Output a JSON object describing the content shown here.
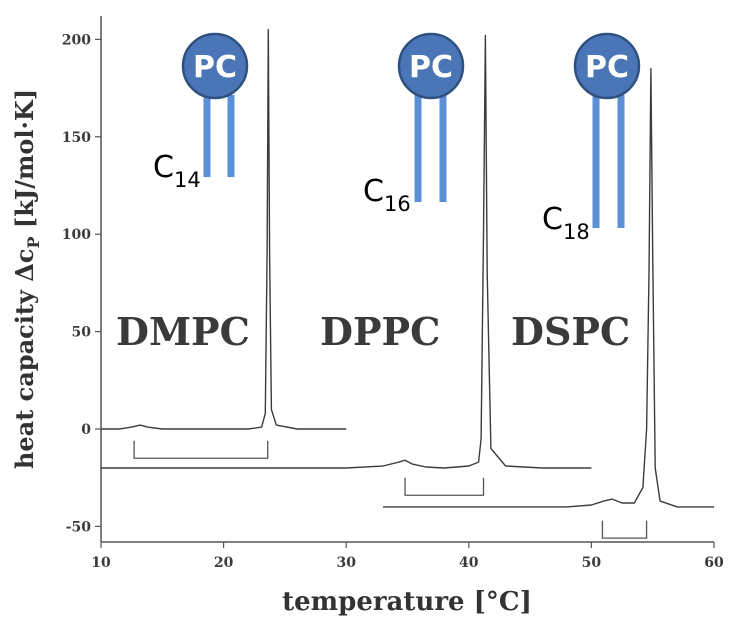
{
  "chart_data": {
    "type": "line",
    "xlabel": "temperature [°C]",
    "ylabel_main": "heat capacity Δc",
    "ylabel_sub": "P",
    "ylabel_unit": " [kJ/mol·K]",
    "xlim": [
      10,
      60
    ],
    "ylim": [
      -58,
      212
    ],
    "xticks": [
      10,
      20,
      30,
      40,
      50,
      60
    ],
    "yticks": [
      -50,
      0,
      50,
      100,
      150,
      200
    ],
    "grid": false,
    "series": [
      {
        "name": "DMPC",
        "chain": "14",
        "x": [
          10,
          11.5,
          12.5,
          13.2,
          13.8,
          15,
          17,
          20,
          22,
          23.1,
          23.4,
          23.55,
          23.65,
          23.75,
          23.9,
          24.3,
          26,
          30
        ],
        "y": [
          0,
          0,
          1,
          2,
          1,
          0,
          0,
          0,
          0,
          1,
          8,
          90,
          205,
          90,
          10,
          2,
          0,
          0
        ]
      },
      {
        "name": "DPPC",
        "chain": "16",
        "x": [
          10,
          20,
          30,
          33,
          34.3,
          34.8,
          35.4,
          36.5,
          38,
          40,
          40.8,
          41.0,
          41.2,
          41.35,
          41.5,
          41.8,
          43,
          46,
          50
        ],
        "y": [
          -20,
          -20,
          -20,
          -19,
          -17,
          -16,
          -18,
          -19.5,
          -20,
          -19,
          -17,
          -5,
          100,
          202,
          80,
          -10,
          -19,
          -20,
          -20
        ]
      },
      {
        "name": "DSPC",
        "chain": "18",
        "x": [
          33,
          40,
          48,
          50,
          51,
          51.7,
          52.5,
          53.5,
          54.2,
          54.5,
          54.7,
          54.85,
          55.0,
          55.2,
          55.6,
          57,
          60
        ],
        "y": [
          -40,
          -40,
          -40,
          -39,
          -37,
          -36,
          -38,
          -38,
          -30,
          0,
          80,
          185,
          90,
          -20,
          -37,
          -40,
          -40
        ]
      }
    ],
    "brackets": [
      {
        "x1": 12.7,
        "x2": 23.6,
        "y": -15,
        "drop": 9
      },
      {
        "x1": 34.8,
        "x2": 41.2,
        "y": -34,
        "drop": 9
      },
      {
        "x1": 50.9,
        "x2": 54.5,
        "y": -56,
        "drop": 9
      }
    ]
  },
  "labels": {
    "lipids": [
      "DMPC",
      "DPPC",
      "DSPC"
    ],
    "head": "PC",
    "chain_prefix": "C",
    "chain_subs": [
      "14",
      "16",
      "18"
    ]
  }
}
